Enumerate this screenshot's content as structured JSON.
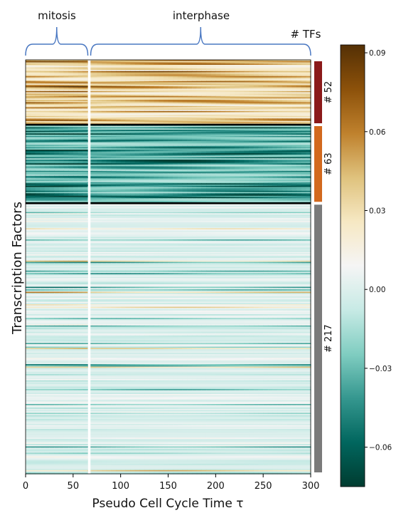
{
  "chart_data": {
    "type": "heatmap",
    "xlabel": "Pseudo Cell Cycle Time τ",
    "ylabel": "Transcription Factors",
    "xlim": [
      0,
      300
    ],
    "x_ticks": [
      0,
      50,
      100,
      150,
      200,
      250,
      300
    ],
    "phase_split": 67,
    "phases": [
      {
        "label": "mitosis",
        "from": 0,
        "to": 67
      },
      {
        "label": "interphase",
        "from": 67,
        "to": 300
      }
    ],
    "group_header": "# TFs",
    "groups": [
      {
        "label": "# 52",
        "count": 52,
        "color": "#8b1a1a",
        "sign": 1
      },
      {
        "label": "# 63",
        "count": 63,
        "color": "#d2691e",
        "sign": -1
      },
      {
        "label": "# 217",
        "count": 217,
        "color": "#7a7a7a",
        "sign": 0
      }
    ],
    "colorbar": {
      "min": -0.075,
      "max": 0.093,
      "ticks": [
        0.09,
        0.06,
        0.03,
        0.0,
        -0.03,
        -0.06
      ],
      "tick_labels": [
        "0.09",
        "0.06",
        "0.03",
        "0.00",
        "−0.03",
        "−0.06"
      ],
      "colormap": "BrBG_r",
      "stops": [
        "#003c30",
        "#01665e",
        "#35978f",
        "#80cdc1",
        "#c7eae5",
        "#f5f5f5",
        "#f6e8c3",
        "#dfc27d",
        "#bf812d",
        "#8c510a",
        "#543005"
      ]
    }
  }
}
